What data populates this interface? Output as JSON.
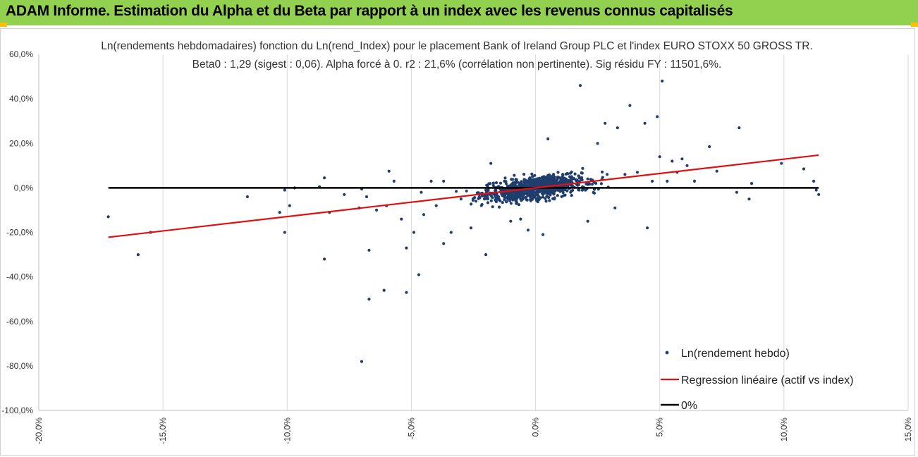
{
  "header": {
    "title": "ADAM Informe. Estimation du Alpha et du Beta par rapport à un index avec les revenus connus capitalisés"
  },
  "colors": {
    "banner": "#92d050",
    "points": "#1f3e6e",
    "regression": "#e01010",
    "zero_line": "#000000",
    "grid": "#d9d9d9"
  },
  "chart_data": {
    "type": "scatter",
    "title": "Ln(rendements hebdomadaires) fonction du Ln(rend_Index) pour le placement Bank of Ireland Group PLC et l'index EURO STOXX 50 GROSS TR.",
    "subtitle": "Beta0 : 1,29 (sigest : 0,06). Alpha forcé à 0. r2 : 21,6% (corrélation non pertinente). Sig résidu FY : 11501,6%.",
    "xlabel": "",
    "ylabel": "",
    "xlim": [
      -0.2,
      0.15
    ],
    "ylim": [
      -1.0,
      0.6
    ],
    "x_ticks": [
      -0.2,
      -0.15,
      -0.1,
      -0.05,
      0.0,
      0.05,
      0.1,
      0.15
    ],
    "x_tick_labels": [
      "-20,0%",
      "-15,0%",
      "-10,0%",
      "-5,0%",
      "0,0%",
      "5,0%",
      "10,0%",
      "15,0%"
    ],
    "y_ticks": [
      0.6,
      0.4,
      0.2,
      0.0,
      -0.2,
      -0.4,
      -0.6,
      -0.8,
      -1.0
    ],
    "y_tick_labels": [
      "60,0%",
      "40,0%",
      "20,0%",
      "0,0%",
      "-20,0%",
      "-40,0%",
      "-60,0%",
      "-80,0%",
      "-100,0%"
    ],
    "grid": "vertical",
    "legend_position": "bottom-right",
    "series": [
      {
        "name": "Ln(rendement hebdo)",
        "kind": "scatter",
        "generated_cluster": {
          "count": 900,
          "x_std": 0.014,
          "beta": 1.29,
          "resid_std": 0.045,
          "seed": 7
        },
        "points": [
          [
            -0.172,
            -0.13
          ],
          [
            -0.16,
            -0.3
          ],
          [
            -0.155,
            -0.2
          ],
          [
            -0.116,
            -0.04
          ],
          [
            -0.103,
            -0.11
          ],
          [
            -0.101,
            -0.2
          ],
          [
            -0.101,
            -0.01
          ],
          [
            -0.099,
            -0.08
          ],
          [
            -0.097,
            0.0
          ],
          [
            -0.087,
            0.005
          ],
          [
            -0.085,
            -0.32
          ],
          [
            -0.085,
            0.045
          ],
          [
            -0.083,
            -0.11
          ],
          [
            -0.077,
            -0.03
          ],
          [
            -0.071,
            -0.09
          ],
          [
            -0.07,
            -0.78
          ],
          [
            -0.07,
            -0.005
          ],
          [
            -0.068,
            -0.04
          ],
          [
            -0.067,
            -0.5
          ],
          [
            -0.067,
            -0.28
          ],
          [
            -0.064,
            -0.1
          ],
          [
            -0.06,
            -0.08
          ],
          [
            -0.061,
            -0.46
          ],
          [
            -0.059,
            0.075
          ],
          [
            -0.057,
            0.03
          ],
          [
            -0.054,
            -0.14
          ],
          [
            -0.052,
            -0.27
          ],
          [
            -0.052,
            -0.47
          ],
          [
            -0.047,
            -0.39
          ],
          [
            -0.049,
            -0.2
          ],
          [
            -0.045,
            -0.12
          ],
          [
            -0.04,
            -0.08
          ],
          [
            -0.037,
            -0.25
          ],
          [
            -0.037,
            0.03
          ],
          [
            -0.034,
            -0.2
          ],
          [
            -0.03,
            -0.05
          ],
          [
            -0.026,
            -0.18
          ],
          [
            -0.024,
            -0.06
          ],
          [
            -0.02,
            -0.3
          ],
          [
            -0.018,
            0.11
          ],
          [
            -0.01,
            -0.15
          ],
          [
            -0.006,
            -0.14
          ],
          [
            -0.003,
            -0.19
          ],
          [
            0.003,
            -0.21
          ],
          [
            0.005,
            0.22
          ],
          [
            0.018,
            0.46
          ],
          [
            0.021,
            -0.15
          ],
          [
            0.025,
            0.2
          ],
          [
            0.028,
            0.29
          ],
          [
            0.033,
            0.27
          ],
          [
            0.038,
            0.37
          ],
          [
            0.044,
            0.29
          ],
          [
            0.045,
            -0.18
          ],
          [
            0.049,
            0.32
          ],
          [
            0.051,
            0.48
          ],
          [
            0.05,
            0.14
          ],
          [
            0.053,
            0.03
          ],
          [
            0.055,
            0.12
          ],
          [
            0.057,
            0.07
          ],
          [
            0.059,
            0.13
          ],
          [
            0.061,
            0.1
          ],
          [
            0.064,
            0.03
          ],
          [
            0.07,
            0.185
          ],
          [
            0.073,
            0.075
          ],
          [
            0.082,
            0.27
          ],
          [
            0.081,
            -0.02
          ],
          [
            0.086,
            -0.05
          ],
          [
            0.087,
            0.02
          ],
          [
            0.099,
            0.11
          ],
          [
            0.108,
            0.085
          ],
          [
            0.112,
            0.03
          ],
          [
            0.113,
            -0.01
          ],
          [
            0.114,
            -0.03
          ],
          [
            0.041,
            0.07
          ],
          [
            0.047,
            0.03
          ],
          [
            0.036,
            0.06
          ],
          [
            0.032,
            -0.09
          ],
          [
            -0.042,
            0.03
          ],
          [
            -0.046,
            -0.02
          ]
        ]
      },
      {
        "name": "Regression linéaire (actif vs index)",
        "kind": "line",
        "x": [
          -0.172,
          0.114
        ],
        "y": [
          -0.2219,
          0.1471
        ]
      },
      {
        "name": "0%",
        "kind": "line",
        "x": [
          -0.172,
          0.114
        ],
        "y": [
          0.0,
          0.0
        ]
      }
    ]
  }
}
